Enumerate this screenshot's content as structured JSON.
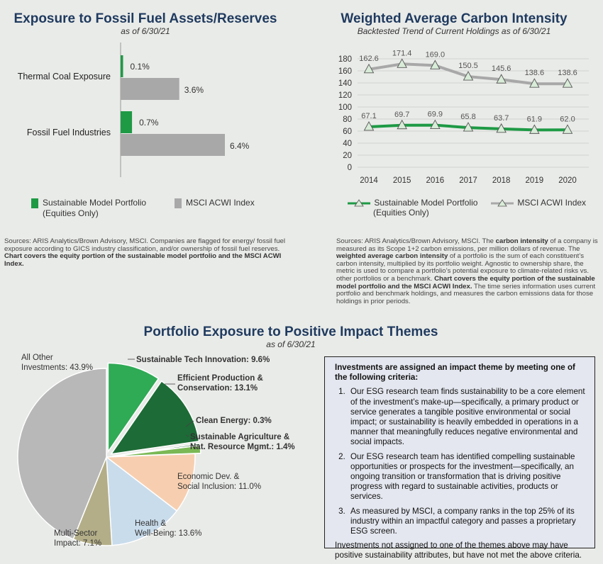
{
  "panel_fossil": {
    "title": "Exposure to Fossil Fuel Assets/Reserves",
    "subtitle": "as of 6/30/21",
    "legend": {
      "portfolio_line1": "Sustainable Model Portfolio",
      "portfolio_line2": "(Equities Only)",
      "index": "MSCI ACWI Index"
    },
    "source_plain": "Sources: ARIS Analytics/Brown Advisory, MSCI. Companies are flagged for energy/ fossil fuel exposure according to GICS industry classification, and/or ownership of fossil fuel reserves.",
    "source_bold": "Chart covers the equity portion of the sustainable model portfolio and the MSCI ACWI Index."
  },
  "panel_carbon": {
    "title": "Weighted Average Carbon Intensity",
    "subtitle": "Backtested Trend of Current Holdings as of 6/30/21",
    "legend": {
      "portfolio_line1": "Sustainable Model Portfolio",
      "portfolio_line2": "(Equities Only)",
      "index": "MSCI ACWI Index"
    },
    "source_1": "Sources: ARIS Analytics/Brown Advisory, MSCI. The",
    "source_b1": "carbon intensity",
    "source_2": "of a company is measured as its Scope 1+2 carbon emissions, per million dollars of revenue. The",
    "source_b2": "weighted average carbon intensity",
    "source_3": "of a portfolio is the sum of each constituent’s carbon intensity, multiplied by its portfolio weight. Agnostic to ownership share, the metric is used to compare a portfolio’s potential exposure to climate-related risks vs. other portfolios or a benchmark.",
    "source_b3": "Chart covers the equity portion of the sustainable model portfolio and the MSCI ACWI Index.",
    "source_4": "The time series information uses current portfolio and benchmark holdings, and measures the carbon emissions data for those holdings in prior periods."
  },
  "panel_impact": {
    "title": "Portfolio Exposure to Positive Impact Themes",
    "subtitle": "as of 6/30/21"
  },
  "criteria": {
    "heading": "Investments are assigned an impact theme by meeting one of the following criteria:",
    "items": [
      "Our ESG research team finds sustainability to be a core element of the investment’s make-up—specifically, a primary product or service generates a tangible positive environmental or social impact; or sustainability is heavily embedded in operations in a manner that meaningfully reduces negative environmental and social impacts.",
      "Our ESG research team has identified compelling sustainable opportunities or prospects for the investment—specifically, an ongoing transition or transformation that is driving positive progress with regard to sustainable activities, products or services.",
      "As measured by MSCI, a company ranks in the top 25% of its industry within an impactful category and passes a proprietary ESG screen."
    ],
    "footer": "Investments not assigned to one of the themes above may have positive sustainability attributes, but have not met the above criteria."
  },
  "colors": {
    "portfolio": "#1e9a45",
    "index": "#a8a8a8",
    "title": "#1f3a5f"
  },
  "chart_data": [
    {
      "type": "bar",
      "orientation": "horizontal",
      "title": "Exposure to Fossil Fuel Assets/Reserves",
      "categories": [
        "Thermal Coal Exposure",
        "Fossil Fuel Industries"
      ],
      "series": [
        {
          "name": "Sustainable Model Portfolio (Equities Only)",
          "values": [
            0.1,
            0.7
          ],
          "labels": [
            "0.1%",
            "0.7%"
          ]
        },
        {
          "name": "MSCI ACWI Index",
          "values": [
            3.6,
            6.4
          ],
          "labels": [
            "3.6%",
            "6.4%"
          ]
        }
      ],
      "unit": "%",
      "xlim": [
        0,
        7
      ]
    },
    {
      "type": "line",
      "title": "Weighted Average Carbon Intensity",
      "x": [
        "2014",
        "2015",
        "2016",
        "2017",
        "2018",
        "2019",
        "2020"
      ],
      "series": [
        {
          "name": "Sustainable Model Portfolio (Equities Only)",
          "values": [
            67.1,
            69.7,
            69.9,
            65.8,
            63.7,
            61.9,
            62.0
          ],
          "labels": [
            "67.1",
            "69.7",
            "69.9",
            "65.8",
            "63.7",
            "61.9",
            "62.0"
          ]
        },
        {
          "name": "MSCI ACWI Index",
          "values": [
            162.6,
            171.4,
            169.0,
            150.5,
            145.6,
            138.6,
            138.6
          ],
          "labels": [
            "162.6",
            "171.4",
            "169.0",
            "150.5",
            "145.6",
            "138.6",
            "138.6"
          ]
        }
      ],
      "ylim": [
        0,
        180
      ],
      "yticks": [
        "0",
        "20",
        "40",
        "60",
        "80",
        "100",
        "120",
        "140",
        "160",
        "180"
      ],
      "grid": true
    },
    {
      "type": "pie",
      "title": "Portfolio Exposure to Positive Impact Themes",
      "slices": [
        {
          "name": "Sustainable Tech Innovation",
          "value": 9.6,
          "label": "9.6%",
          "highlight": true
        },
        {
          "name": "Efficient Production & Conservation",
          "line1": "Efficient Production &",
          "line2": "Conservation",
          "value": 13.1,
          "label": "13.1%",
          "highlight": true
        },
        {
          "name": "Clean Energy",
          "value": 0.3,
          "label": "0.3%",
          "highlight": true
        },
        {
          "name": "Sustainable Agriculture & Nat. Resource Mgmt.",
          "line1": "Sustainable Agriculture &",
          "line2": "Nat. Resource Mgmt.",
          "value": 1.4,
          "label": "1.4%",
          "highlight": true
        },
        {
          "name": "Economic Dev. & Social Inclusion",
          "line1": "Economic Dev. &",
          "line2": "Social Inclusion",
          "value": 11.0,
          "label": "11.0%",
          "highlight": false
        },
        {
          "name": "Health & Well-Being",
          "line1": "Health &",
          "line2": "Well-Being",
          "value": 13.6,
          "label": "13.6%",
          "highlight": false
        },
        {
          "name": "Multi-Sector Impact",
          "line1": "Multi-Sector",
          "line2": "Impact",
          "value": 7.1,
          "label": "7.1%",
          "highlight": false
        },
        {
          "name": "All Other Investments",
          "line1": "All Other",
          "line2": "Investments",
          "value": 43.9,
          "label": "43.9%",
          "highlight": false
        }
      ],
      "colors": [
        "#2faa55",
        "#1d6b36",
        "#15552a",
        "#7ab855",
        "#f7cfb0",
        "#c9dcec",
        "#b3ae88",
        "#b8b8b8"
      ]
    }
  ]
}
